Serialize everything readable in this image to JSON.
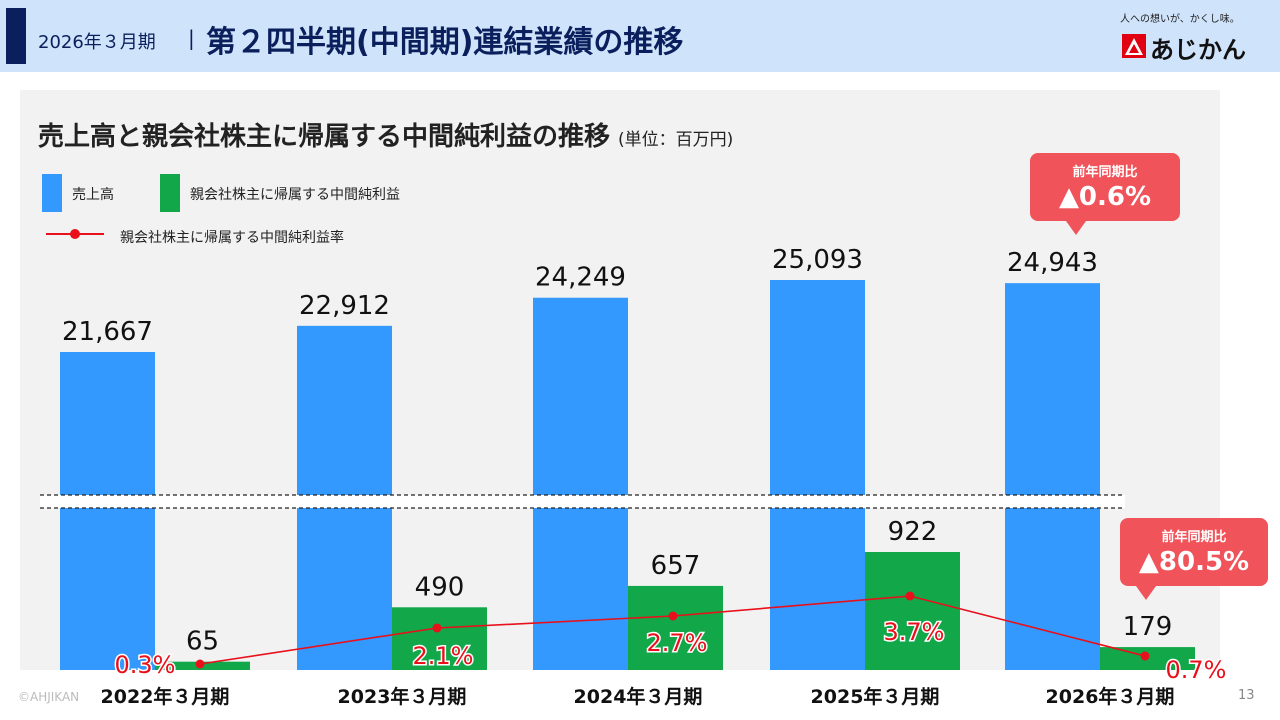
{
  "header": {
    "period": "2026年３月期",
    "separator": "|",
    "title": "第２四半期(中間期)連結業績の推移",
    "tagline": "人への想いが、かくし味。",
    "logo_text": "あじかん"
  },
  "chart_title": "売上高と親会社株主に帰属する中間純利益の推移",
  "chart_unit": "(単位：百万円)",
  "legend": {
    "sales": "売上高",
    "profit": "親会社株主に帰属する中間純利益",
    "rate": "親会社株主に帰属する中間純利益率"
  },
  "callouts": {
    "sales": {
      "label": "前年同期比",
      "value": "▲0.6%"
    },
    "profit": {
      "label": "前年同期比",
      "value": "▲80.5%"
    }
  },
  "footer": {
    "copyright": "©AHJIKAN",
    "page": "13"
  },
  "colors": {
    "sales": "#3399ff",
    "profit": "#12a84a",
    "rate": "#e8101a",
    "callout": "#f0535a"
  },
  "chart_data": {
    "type": "bar",
    "broken_axis": true,
    "categories": [
      "2022年３月期",
      "2023年３月期",
      "2024年３月期",
      "2025年３月期",
      "2026年３月期"
    ],
    "series": [
      {
        "name": "売上高",
        "values": [
          21667,
          22912,
          24249,
          25093,
          24943
        ],
        "labels": [
          "21,667",
          "22,912",
          "24,249",
          "25,093",
          "24,943"
        ]
      },
      {
        "name": "親会社株主に帰属する中間純利益",
        "values": [
          65,
          490,
          657,
          922,
          179
        ],
        "labels": [
          "65",
          "490",
          "657",
          "922",
          "179"
        ]
      },
      {
        "name": "親会社株主に帰属する中間純利益率",
        "type": "line",
        "values": [
          0.3,
          2.1,
          2.7,
          3.7,
          0.7
        ],
        "labels": [
          "0.3%",
          "2.1%",
          "2.7%",
          "3.7%",
          "0.7%"
        ]
      }
    ]
  }
}
